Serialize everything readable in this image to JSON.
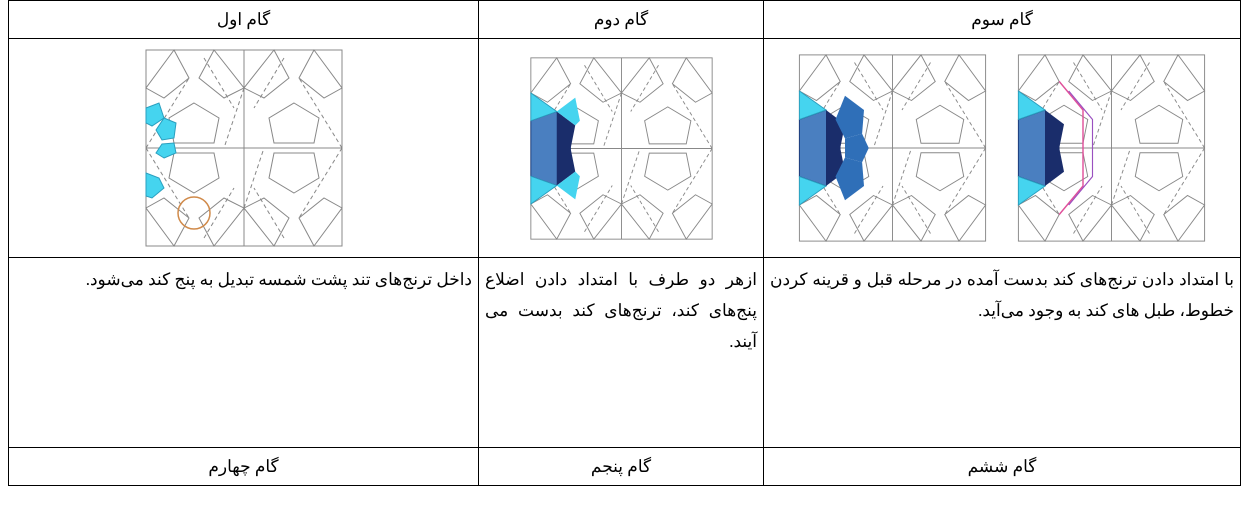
{
  "table": {
    "header_row": [
      "گام سوم",
      "گام دوم",
      "گام اول"
    ],
    "text_row": [
      "با امتداد دادن ترنج‌های کند بدست آمده در مرحله قبل و قرینه کردن خطوط، طبل های کند به وجود می‌آید.",
      "ازهر دو طرف با امتداد دادن اضلاع پنج‌های کند، ترنج‌های کند بدست می آیند.",
      "داخل ترنج‌های تند پشت شمسه تبدیل به پنج کند می‌شود."
    ],
    "footer_row": [
      "گام ششم",
      "گام پنجم",
      "گام چهارم"
    ]
  }
}
